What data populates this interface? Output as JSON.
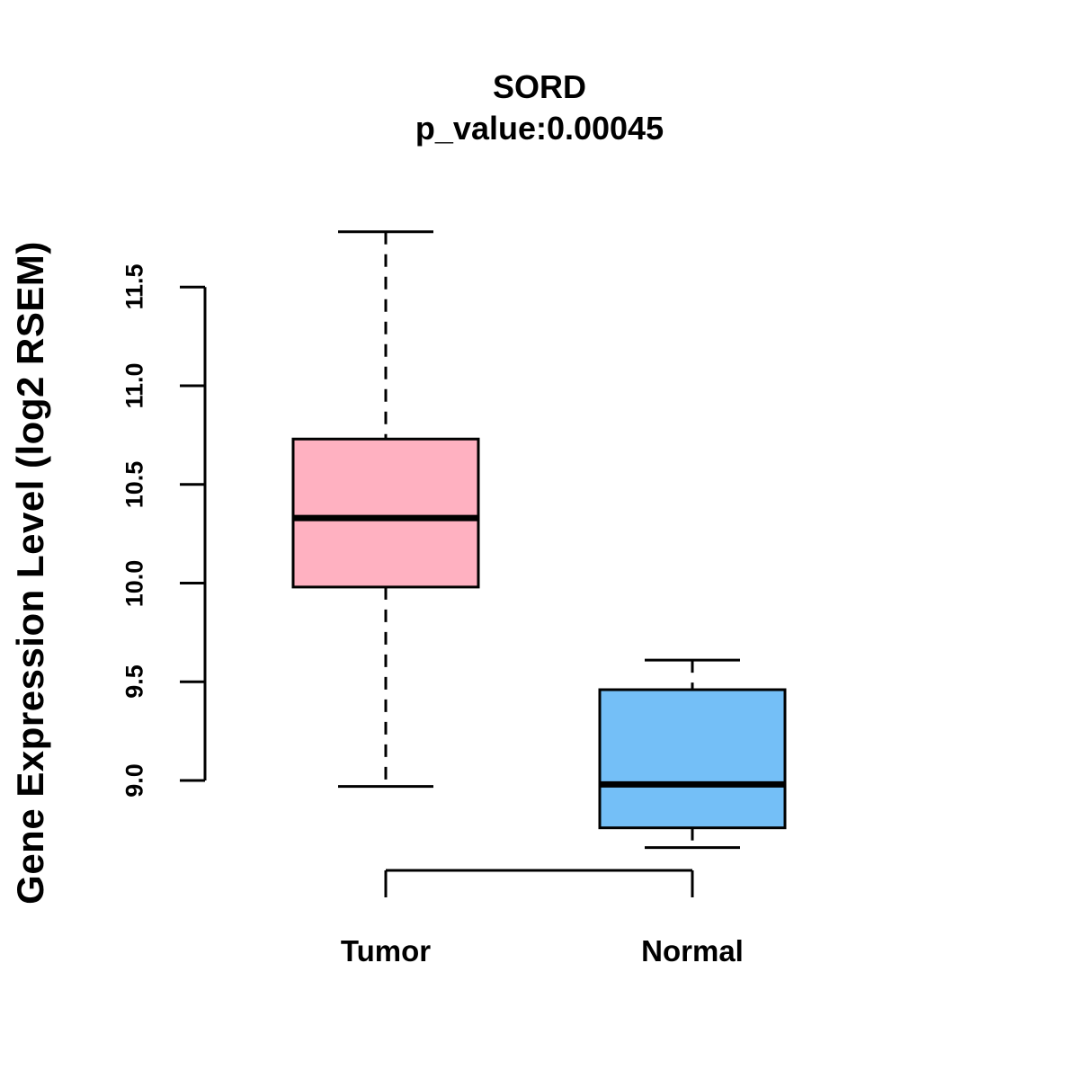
{
  "chart_data": {
    "type": "boxplot",
    "title": "SORD",
    "subtitle": "p_value:0.00045",
    "ylabel": "Gene Expression Level (log2 RSEM)",
    "categories": [
      "Tumor",
      "Normal"
    ],
    "series": [
      {
        "name": "Tumor",
        "fill_color": "#FFB1C1",
        "whisker_low": 8.97,
        "q1": 9.98,
        "median": 10.33,
        "q3": 10.73,
        "whisker_high": 11.78
      },
      {
        "name": "Normal",
        "fill_color": "#74BFF7",
        "whisker_low": 8.66,
        "q1": 8.76,
        "median": 8.98,
        "q3": 9.46,
        "whisker_high": 9.61
      }
    ],
    "ytick_labels": [
      "9.0",
      "9.5",
      "10.0",
      "10.5",
      "11.0",
      "11.5"
    ],
    "ytick_values": [
      9.0,
      9.5,
      10.0,
      10.5,
      11.0,
      11.5
    ],
    "ylim": [
      8.6,
      11.9
    ],
    "line_color": "#000000",
    "background_color": "#FFFFFF",
    "grid": false,
    "legend": false,
    "whisker_style": "dashed"
  }
}
